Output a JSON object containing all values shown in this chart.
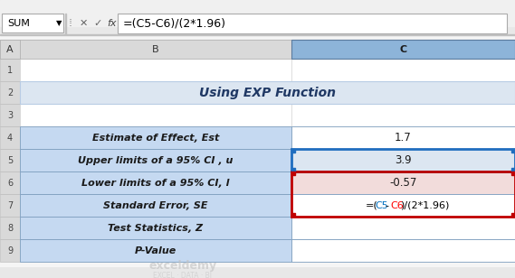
{
  "title": "Using EXP Function",
  "formula_bar_text": "=(C5-C6)/(2*1.96)",
  "name_box": "SUM",
  "col_headers": [
    "A",
    "B",
    "C"
  ],
  "row_headers": [
    "1",
    "2",
    "3",
    "4",
    "5",
    "6",
    "7",
    "8",
    "9"
  ],
  "rows": [
    {
      "row": 4,
      "label": "Estimate of Effect, Est",
      "value": "1.7",
      "label_bg": "#c5d9f1",
      "value_bg": "#ffffff"
    },
    {
      "row": 5,
      "label": "Upper limits of a 95% CI , u",
      "value": "3.9",
      "label_bg": "#c5d9f1",
      "value_bg": "#dce6f1"
    },
    {
      "row": 6,
      "label": "Lower limits of a 95% CI, l",
      "value": "-0.57",
      "label_bg": "#c5d9f1",
      "value_bg": "#f2dcdb"
    },
    {
      "row": 7,
      "label": "Standard Error, SE",
      "value": "=(C5-C6)/(2*1.96)",
      "label_bg": "#c5d9f1",
      "value_bg": "#ffffff"
    },
    {
      "row": 8,
      "label": "Test Statistics, Z",
      "value": "",
      "label_bg": "#c5d9f1",
      "value_bg": "#ffffff"
    },
    {
      "row": 9,
      "label": "P-Value",
      "value": "",
      "label_bg": "#c5d9f1",
      "value_bg": "#ffffff"
    }
  ],
  "title_bg": "#dce6f1",
  "header_bg": "#d9d9d9",
  "formula_color_C5": "#0070c0",
  "formula_color_C6": "#ff0000",
  "formula_color_rest": "#000000"
}
